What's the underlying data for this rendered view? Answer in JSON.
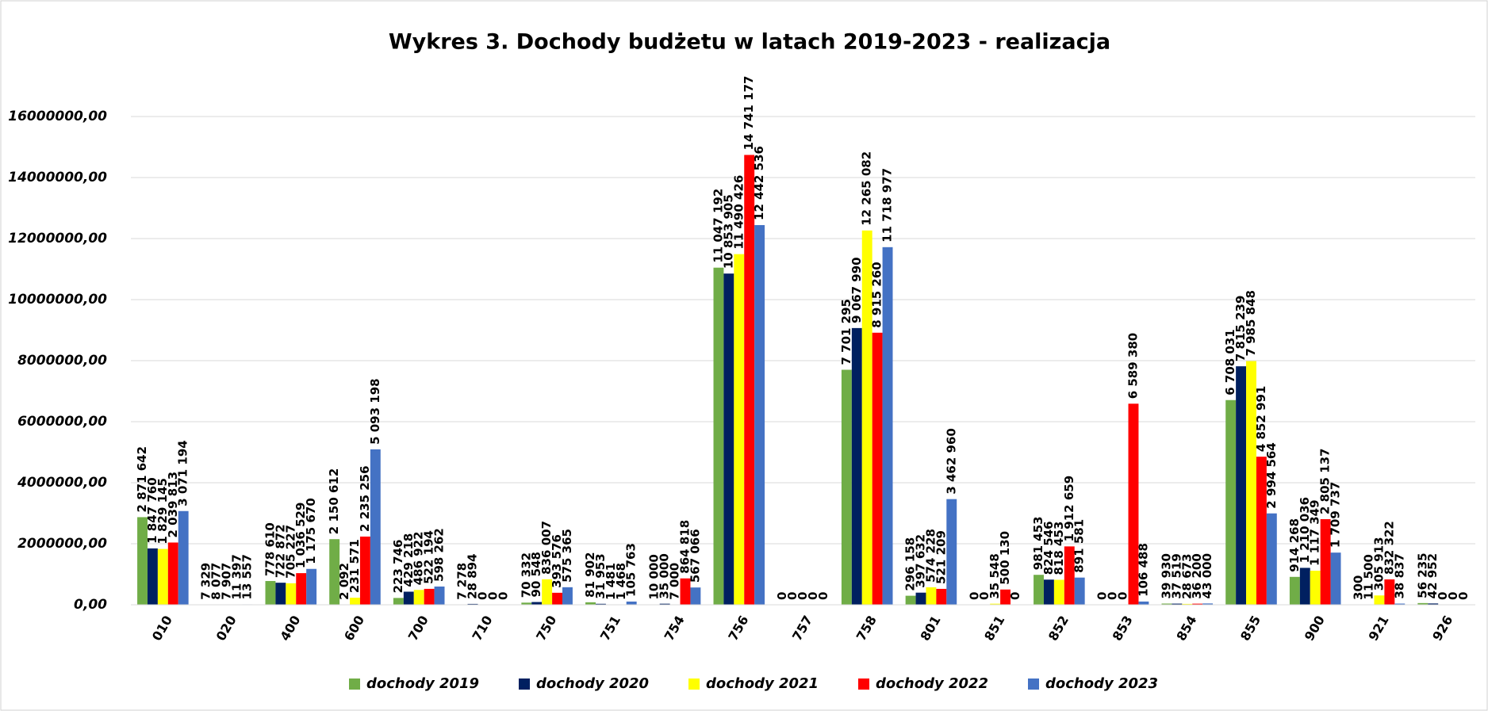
{
  "chart_data": {
    "type": "bar",
    "title": "Wykres 3. Dochody budżetu w latach 2019-2023 - realizacja",
    "categories": [
      "010",
      "020",
      "400",
      "600",
      "700",
      "710",
      "750",
      "751",
      "754",
      "756",
      "757",
      "758",
      "801",
      "851",
      "852",
      "853",
      "854",
      "855",
      "900",
      "921",
      "926"
    ],
    "series": [
      {
        "name": "dochody 2019",
        "color": "#70ad47",
        "values": [
          2871642,
          7329,
          778610,
          2150612,
          223746,
          7278,
          70332,
          81902,
          10000,
          11047192,
          0,
          7701295,
          296158,
          0,
          981453,
          0,
          39930,
          6708031,
          914268,
          300,
          56235
        ],
        "value_labels": [
          "2 871 642",
          "7 329",
          "778 610",
          "2 150 612",
          "223 746",
          "7 278",
          "70 332",
          "81 902",
          "10 000",
          "11 047 192",
          "0",
          "7 701 295",
          "296 158",
          "0",
          "981 453",
          "0",
          "39 930",
          "6 708 031",
          "914 268",
          "300",
          "56 235"
        ]
      },
      {
        "name": "dochody 2020",
        "color": "#002060",
        "values": [
          1847760,
          8077,
          722872,
          2092,
          429218,
          28894,
          90548,
          31953,
          35000,
          10853905,
          0,
          9067990,
          397632,
          0,
          824546,
          0,
          37519,
          7815239,
          1210036,
          11500,
          42952
        ],
        "value_labels": [
          "1 847 760",
          "8 077",
          "722 872",
          "2 092",
          "429 218",
          "28 894",
          "90 548",
          "31 953",
          "35 000",
          "10 853 905",
          "0",
          "9 067 990",
          "397 632",
          "0",
          "824 546",
          "0",
          "37 519",
          "7 815 239",
          "1 210 036",
          "11 500",
          "42 952"
        ]
      },
      {
        "name": "dochody 2021",
        "color": "#ffff00",
        "values": [
          1829145,
          7907,
          705227,
          231571,
          486922,
          0,
          836007,
          1481,
          7000,
          11490426,
          0,
          12265082,
          574228,
          35548,
          818453,
          0,
          28673,
          7985848,
          1117349,
          305913,
          0
        ],
        "value_labels": [
          "1 829 145",
          "7 907",
          "705 227",
          "231 571",
          "486 922",
          "0",
          "836 007",
          "1 481",
          "7 000",
          "11 490 426",
          "0",
          "12 265 082",
          "574 228",
          "35 548",
          "818 453",
          "0",
          "28 673",
          "7 985 848",
          "1 117 349",
          "305 913",
          "0"
        ]
      },
      {
        "name": "dochody 2022",
        "color": "#ff0000",
        "values": [
          2039813,
          11397,
          1036529,
          2235256,
          522194,
          0,
          393576,
          1468,
          864818,
          14741177,
          0,
          8915260,
          521209,
          500130,
          1912659,
          6589380,
          36200,
          4852991,
          2805137,
          832322,
          0
        ],
        "value_labels": [
          "2 039 813",
          "11 397",
          "1 036 529",
          "2 235 256",
          "522 194",
          "0",
          "393 576",
          "1 468",
          "864 818",
          "14 741 177",
          "0",
          "8 915 260",
          "521 209",
          "500 130",
          "1 912 659",
          "6 589 380",
          "36 200",
          "4 852 991",
          "2 805 137",
          "832 322",
          "0"
        ]
      },
      {
        "name": "dochody 2023",
        "color": "#4472c4",
        "values": [
          3071194,
          13557,
          1175670,
          5093198,
          598262,
          0,
          575365,
          105763,
          567066,
          12442536,
          0,
          11718977,
          3462960,
          0,
          891581,
          106488,
          43000,
          2994564,
          1709737,
          38837,
          0
        ],
        "value_labels": [
          "3 071 194",
          "13 557",
          "1 175 670",
          "5 093 198",
          "598 262",
          "0",
          "575 365",
          "105 763",
          "567 066",
          "12 442 536",
          "0",
          "11 718 977",
          "3 462 960",
          "0",
          "891 581",
          "106 488",
          "43 000",
          "2 994 564",
          "1 709 737",
          "38 837",
          "0"
        ]
      }
    ],
    "ylim": [
      0,
      16000000
    ],
    "yticks": [
      {
        "value": 0,
        "label": "0,00"
      },
      {
        "value": 2000000,
        "label": "2000000,00"
      },
      {
        "value": 4000000,
        "label": "4000000,00"
      },
      {
        "value": 6000000,
        "label": "6000000,00"
      },
      {
        "value": 8000000,
        "label": "8000000,00"
      },
      {
        "value": 10000000,
        "label": "10000000,00"
      },
      {
        "value": 12000000,
        "label": "12000000,00"
      },
      {
        "value": 14000000,
        "label": "14000000,00"
      },
      {
        "value": 16000000,
        "label": "16000000,00"
      }
    ],
    "grid": true,
    "legend": "bottom"
  }
}
